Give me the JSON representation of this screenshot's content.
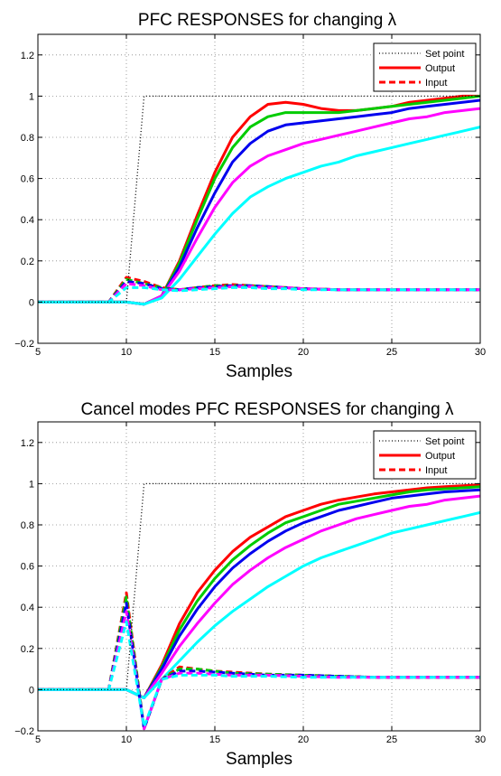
{
  "chart_data": [
    {
      "type": "line",
      "title": "PFC RESPONSES for changing λ",
      "xlabel": "Samples",
      "ylabel": "",
      "xlim": [
        5,
        30
      ],
      "ylim": [
        -0.2,
        1.3
      ],
      "xticks": [
        5,
        10,
        15,
        20,
        25,
        30
      ],
      "yticks": [
        -0.2,
        0,
        0.2,
        0.4,
        0.6,
        0.8,
        1,
        1.2
      ],
      "xtick_labels": [
        "5",
        "10",
        "15",
        "20",
        "25",
        "30"
      ],
      "ytick_labels": [
        "−0.2",
        "0",
        "0.2",
        "0.4",
        "0.6",
        "0.8",
        "1",
        "1.2"
      ],
      "grid": true,
      "legend_position": "top-right",
      "legend": [
        {
          "label": "Set point",
          "style": "dotted",
          "color": "#000000"
        },
        {
          "label": "Output",
          "style": "solid",
          "color": "#ff0000"
        },
        {
          "label": "Input",
          "style": "dashed",
          "color": "#ff0000"
        }
      ],
      "series": [
        {
          "role": "setpoint",
          "style": "dotted",
          "color": "#000000",
          "x": [
            5,
            10,
            11,
            30
          ],
          "y": [
            0,
            0,
            1,
            1
          ]
        },
        {
          "role": "output",
          "style": "solid",
          "color": "#ff0000",
          "x": [
            5,
            10,
            11,
            12,
            13,
            14,
            15,
            16,
            17,
            18,
            19,
            20,
            21,
            22,
            23,
            24,
            25,
            26,
            27,
            28,
            29,
            30
          ],
          "y": [
            0,
            0,
            -0.01,
            0.03,
            0.2,
            0.42,
            0.63,
            0.8,
            0.9,
            0.96,
            0.97,
            0.96,
            0.94,
            0.93,
            0.93,
            0.94,
            0.95,
            0.97,
            0.98,
            0.99,
            1,
            1
          ]
        },
        {
          "role": "output",
          "style": "solid",
          "color": "#00cc00",
          "x": [
            5,
            10,
            11,
            12,
            13,
            14,
            15,
            16,
            17,
            18,
            19,
            20,
            21,
            22,
            23,
            24,
            25,
            26,
            27,
            28,
            29,
            30
          ],
          "y": [
            0,
            0,
            -0.01,
            0.03,
            0.19,
            0.4,
            0.6,
            0.75,
            0.85,
            0.9,
            0.92,
            0.92,
            0.92,
            0.92,
            0.93,
            0.94,
            0.95,
            0.96,
            0.97,
            0.98,
            0.99,
            1
          ]
        },
        {
          "role": "output",
          "style": "solid",
          "color": "#0000ee",
          "x": [
            5,
            10,
            11,
            12,
            13,
            14,
            15,
            16,
            17,
            18,
            19,
            20,
            21,
            22,
            23,
            24,
            25,
            26,
            27,
            28,
            29,
            30
          ],
          "y": [
            0,
            0,
            -0.01,
            0.03,
            0.17,
            0.36,
            0.53,
            0.68,
            0.77,
            0.83,
            0.86,
            0.87,
            0.88,
            0.89,
            0.9,
            0.91,
            0.92,
            0.94,
            0.95,
            0.96,
            0.97,
            0.98
          ]
        },
        {
          "role": "output",
          "style": "solid",
          "color": "#ff00ff",
          "x": [
            5,
            10,
            11,
            12,
            13,
            14,
            15,
            16,
            17,
            18,
            19,
            20,
            21,
            22,
            23,
            24,
            25,
            26,
            27,
            28,
            29,
            30
          ],
          "y": [
            0,
            0,
            -0.01,
            0.03,
            0.15,
            0.31,
            0.46,
            0.58,
            0.66,
            0.71,
            0.74,
            0.77,
            0.79,
            0.81,
            0.83,
            0.85,
            0.87,
            0.89,
            0.9,
            0.92,
            0.93,
            0.94
          ]
        },
        {
          "role": "output",
          "style": "solid",
          "color": "#00ffff",
          "x": [
            5,
            10,
            11,
            12,
            13,
            14,
            15,
            16,
            17,
            18,
            19,
            20,
            21,
            22,
            23,
            24,
            25,
            26,
            27,
            28,
            29,
            30
          ],
          "y": [
            0,
            0,
            -0.01,
            0.02,
            0.11,
            0.22,
            0.33,
            0.43,
            0.51,
            0.56,
            0.6,
            0.63,
            0.66,
            0.68,
            0.71,
            0.73,
            0.75,
            0.77,
            0.79,
            0.81,
            0.83,
            0.85
          ]
        },
        {
          "role": "input",
          "style": "dashed",
          "color": "#ff0000",
          "x": [
            5,
            9,
            10,
            11,
            12,
            13,
            14,
            15,
            16,
            17,
            18,
            19,
            20,
            22,
            24,
            26,
            28,
            30
          ],
          "y": [
            0,
            0,
            0.12,
            0.1,
            0.07,
            0.06,
            0.07,
            0.08,
            0.085,
            0.08,
            0.075,
            0.07,
            0.065,
            0.06,
            0.06,
            0.06,
            0.06,
            0.06
          ]
        },
        {
          "role": "input",
          "style": "dashed",
          "color": "#00cc00",
          "x": [
            5,
            9,
            10,
            11,
            12,
            13,
            14,
            15,
            16,
            17,
            18,
            19,
            20,
            22,
            24,
            26,
            28,
            30
          ],
          "y": [
            0,
            0,
            0.11,
            0.09,
            0.07,
            0.06,
            0.07,
            0.08,
            0.08,
            0.08,
            0.075,
            0.07,
            0.065,
            0.06,
            0.06,
            0.06,
            0.06,
            0.06
          ]
        },
        {
          "role": "input",
          "style": "dashed",
          "color": "#0000ee",
          "x": [
            5,
            9,
            10,
            11,
            12,
            13,
            14,
            15,
            16,
            17,
            18,
            19,
            20,
            22,
            24,
            26,
            28,
            30
          ],
          "y": [
            0,
            0,
            0.1,
            0.09,
            0.065,
            0.06,
            0.07,
            0.075,
            0.08,
            0.08,
            0.075,
            0.07,
            0.065,
            0.06,
            0.06,
            0.06,
            0.06,
            0.06
          ]
        },
        {
          "role": "input",
          "style": "dashed",
          "color": "#ff00ff",
          "x": [
            5,
            9,
            10,
            11,
            12,
            13,
            14,
            15,
            16,
            17,
            18,
            19,
            20,
            22,
            24,
            26,
            28,
            30
          ],
          "y": [
            0,
            0,
            0.09,
            0.08,
            0.06,
            0.06,
            0.065,
            0.07,
            0.075,
            0.075,
            0.07,
            0.07,
            0.065,
            0.06,
            0.06,
            0.06,
            0.06,
            0.06
          ]
        },
        {
          "role": "input",
          "style": "dashed",
          "color": "#00ffff",
          "x": [
            5,
            9,
            10,
            11,
            12,
            13,
            14,
            15,
            16,
            17,
            18,
            19,
            20,
            22,
            24,
            26,
            28,
            30
          ],
          "y": [
            0,
            0,
            0.07,
            0.07,
            0.06,
            0.055,
            0.06,
            0.065,
            0.07,
            0.07,
            0.065,
            0.065,
            0.06,
            0.06,
            0.06,
            0.06,
            0.06,
            0.06
          ]
        }
      ]
    },
    {
      "type": "line",
      "title": "Cancel modes PFC RESPONSES for changing λ",
      "xlabel": "Samples",
      "ylabel": "",
      "xlim": [
        5,
        30
      ],
      "ylim": [
        -0.2,
        1.3
      ],
      "xticks": [
        5,
        10,
        15,
        20,
        25,
        30
      ],
      "yticks": [
        -0.2,
        0,
        0.2,
        0.4,
        0.6,
        0.8,
        1,
        1.2
      ],
      "xtick_labels": [
        "5",
        "10",
        "15",
        "20",
        "25",
        "30"
      ],
      "ytick_labels": [
        "−0.2",
        "0",
        "0.2",
        "0.4",
        "0.6",
        "0.8",
        "1",
        "1.2"
      ],
      "grid": true,
      "legend_position": "top-right",
      "legend": [
        {
          "label": "Set point",
          "style": "dotted",
          "color": "#000000"
        },
        {
          "label": "Output",
          "style": "solid",
          "color": "#ff0000"
        },
        {
          "label": "Input",
          "style": "dashed",
          "color": "#ff0000"
        }
      ],
      "series": [
        {
          "role": "setpoint",
          "style": "dotted",
          "color": "#000000",
          "x": [
            5,
            10,
            11,
            30
          ],
          "y": [
            0,
            0,
            1,
            1
          ]
        },
        {
          "role": "output",
          "style": "solid",
          "color": "#ff0000",
          "x": [
            5,
            10,
            11,
            12,
            13,
            14,
            15,
            16,
            17,
            18,
            19,
            20,
            21,
            22,
            23,
            24,
            25,
            26,
            27,
            28,
            29,
            30
          ],
          "y": [
            0,
            0,
            -0.04,
            0.12,
            0.32,
            0.47,
            0.58,
            0.67,
            0.74,
            0.79,
            0.84,
            0.87,
            0.9,
            0.92,
            0.935,
            0.95,
            0.96,
            0.97,
            0.98,
            0.985,
            0.99,
            0.995
          ]
        },
        {
          "role": "output",
          "style": "solid",
          "color": "#00cc00",
          "x": [
            5,
            10,
            11,
            12,
            13,
            14,
            15,
            16,
            17,
            18,
            19,
            20,
            21,
            22,
            23,
            24,
            25,
            26,
            27,
            28,
            29,
            30
          ],
          "y": [
            0,
            0,
            -0.04,
            0.11,
            0.29,
            0.43,
            0.54,
            0.63,
            0.7,
            0.76,
            0.81,
            0.84,
            0.87,
            0.9,
            0.915,
            0.93,
            0.945,
            0.96,
            0.97,
            0.975,
            0.98,
            0.985
          ]
        },
        {
          "role": "output",
          "style": "solid",
          "color": "#0000ee",
          "x": [
            5,
            10,
            11,
            12,
            13,
            14,
            15,
            16,
            17,
            18,
            19,
            20,
            21,
            22,
            23,
            24,
            25,
            26,
            27,
            28,
            29,
            30
          ],
          "y": [
            0,
            0,
            -0.04,
            0.1,
            0.26,
            0.39,
            0.5,
            0.59,
            0.66,
            0.72,
            0.77,
            0.81,
            0.84,
            0.87,
            0.89,
            0.91,
            0.93,
            0.94,
            0.95,
            0.96,
            0.965,
            0.97
          ]
        },
        {
          "role": "output",
          "style": "solid",
          "color": "#ff00ff",
          "x": [
            5,
            10,
            11,
            12,
            13,
            14,
            15,
            16,
            17,
            18,
            19,
            20,
            21,
            22,
            23,
            24,
            25,
            26,
            27,
            28,
            29,
            30
          ],
          "y": [
            0,
            0,
            -0.04,
            0.08,
            0.21,
            0.32,
            0.42,
            0.51,
            0.58,
            0.64,
            0.69,
            0.73,
            0.77,
            0.8,
            0.83,
            0.85,
            0.87,
            0.89,
            0.9,
            0.92,
            0.93,
            0.94
          ]
        },
        {
          "role": "output",
          "style": "solid",
          "color": "#00ffff",
          "x": [
            5,
            10,
            11,
            12,
            13,
            14,
            15,
            16,
            17,
            18,
            19,
            20,
            21,
            22,
            23,
            24,
            25,
            26,
            27,
            28,
            29,
            30
          ],
          "y": [
            0,
            0,
            -0.04,
            0.05,
            0.14,
            0.23,
            0.31,
            0.38,
            0.44,
            0.5,
            0.55,
            0.6,
            0.64,
            0.67,
            0.7,
            0.73,
            0.76,
            0.78,
            0.8,
            0.82,
            0.84,
            0.86
          ]
        },
        {
          "role": "input",
          "style": "dashed",
          "color": "#ff0000",
          "x": [
            5,
            9,
            10,
            11,
            12,
            13,
            14,
            15,
            16,
            18,
            20,
            22,
            24,
            26,
            28,
            30
          ],
          "y": [
            0,
            0,
            0.47,
            -0.19,
            0.05,
            0.11,
            0.1,
            0.09,
            0.085,
            0.075,
            0.07,
            0.065,
            0.06,
            0.06,
            0.06,
            0.06
          ]
        },
        {
          "role": "input",
          "style": "dashed",
          "color": "#00cc00",
          "x": [
            5,
            9,
            10,
            11,
            12,
            13,
            14,
            15,
            16,
            18,
            20,
            22,
            24,
            26,
            28,
            30
          ],
          "y": [
            0,
            0,
            0.45,
            -0.19,
            0.05,
            0.1,
            0.1,
            0.09,
            0.08,
            0.075,
            0.07,
            0.065,
            0.06,
            0.06,
            0.06,
            0.06
          ]
        },
        {
          "role": "input",
          "style": "dashed",
          "color": "#0000ee",
          "x": [
            5,
            9,
            10,
            11,
            12,
            13,
            14,
            15,
            16,
            18,
            20,
            22,
            24,
            26,
            28,
            30
          ],
          "y": [
            0,
            0,
            0.42,
            -0.19,
            0.05,
            0.09,
            0.09,
            0.085,
            0.08,
            0.07,
            0.07,
            0.065,
            0.06,
            0.06,
            0.06,
            0.06
          ]
        },
        {
          "role": "input",
          "style": "dashed",
          "color": "#ff00ff",
          "x": [
            5,
            9,
            10,
            11,
            12,
            13,
            14,
            15,
            16,
            18,
            20,
            22,
            24,
            26,
            28,
            30
          ],
          "y": [
            0,
            0,
            0.38,
            -0.19,
            0.05,
            0.08,
            0.08,
            0.075,
            0.07,
            0.07,
            0.065,
            0.06,
            0.06,
            0.06,
            0.06,
            0.06
          ]
        },
        {
          "role": "input",
          "style": "dashed",
          "color": "#00ffff",
          "x": [
            5,
            9,
            10,
            11,
            12,
            13,
            14,
            15,
            16,
            18,
            20,
            22,
            24,
            26,
            28,
            30
          ],
          "y": [
            0,
            0,
            0.33,
            -0.18,
            0.05,
            0.07,
            0.07,
            0.07,
            0.065,
            0.065,
            0.06,
            0.06,
            0.06,
            0.06,
            0.06,
            0.06
          ]
        }
      ]
    }
  ]
}
